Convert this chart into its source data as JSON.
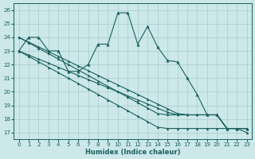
{
  "xlabel": "Humidex (Indice chaleur)",
  "ylabel": "",
  "xlim": [
    -0.5,
    23.5
  ],
  "ylim": [
    16.5,
    26.5
  ],
  "yticks": [
    17,
    18,
    19,
    20,
    21,
    22,
    23,
    24,
    25,
    26
  ],
  "xticks": [
    0,
    1,
    2,
    3,
    4,
    5,
    6,
    7,
    8,
    9,
    10,
    11,
    12,
    13,
    14,
    15,
    16,
    17,
    18,
    19,
    20,
    21,
    22,
    23
  ],
  "bg_color": "#cce8e8",
  "grid_color": "#aacccc",
  "line_color": "#1a5f5f",
  "jagged_line": [
    23,
    24,
    24,
    23,
    23,
    21.5,
    21.5,
    22,
    23.5,
    23.5,
    25.8,
    25.8,
    23.5,
    24.8,
    23.3,
    22.3,
    22.2,
    21,
    19.8,
    18.3,
    18.3,
    17.3,
    17.3,
    17.3
  ],
  "straight_lines": [
    [
      23.0,
      22.6,
      22.2,
      21.8,
      21.4,
      21.0,
      20.6,
      20.2,
      19.8,
      19.4,
      19.0,
      18.6,
      18.2,
      17.8,
      17.4,
      17.3,
      17.3,
      17.3,
      17.3,
      17.3,
      17.3,
      17.3,
      17.3,
      17.3
    ],
    [
      24.0,
      23.6,
      23.2,
      22.8,
      22.4,
      22.0,
      21.6,
      21.2,
      20.8,
      20.4,
      20.0,
      19.6,
      19.2,
      18.8,
      18.4,
      18.3,
      18.3,
      18.3,
      18.3,
      18.3,
      18.3,
      17.3,
      17.3,
      17.3
    ],
    [
      24.0,
      23.65,
      23.3,
      22.95,
      22.6,
      22.25,
      21.9,
      21.55,
      21.2,
      20.85,
      20.5,
      20.15,
      19.8,
      19.45,
      19.1,
      18.75,
      18.4,
      18.3,
      18.3,
      18.3,
      18.3,
      17.3,
      17.3,
      17.0
    ],
    [
      23.0,
      22.7,
      22.4,
      22.1,
      21.8,
      21.5,
      21.2,
      20.9,
      20.6,
      20.3,
      20.0,
      19.7,
      19.4,
      19.1,
      18.8,
      18.5,
      18.3,
      18.3,
      18.3,
      18.3,
      18.3,
      17.3,
      17.3,
      17.3
    ]
  ]
}
